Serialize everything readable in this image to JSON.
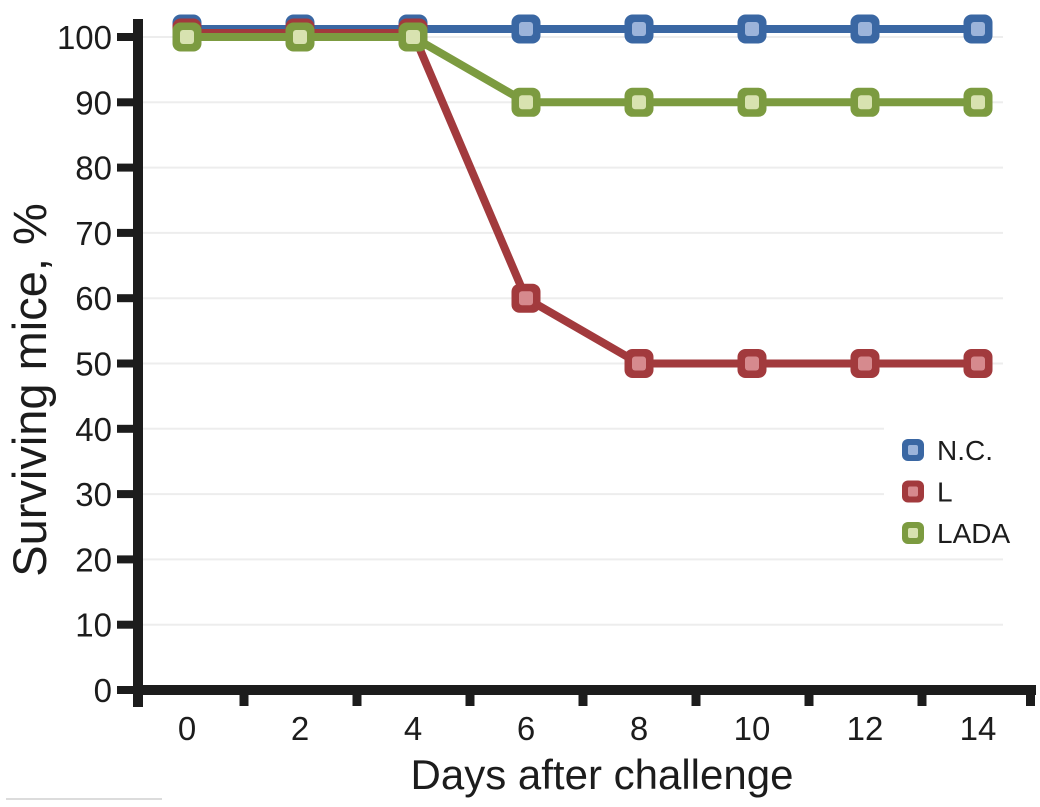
{
  "chart_data": {
    "type": "line",
    "title": "",
    "xlabel": "Days after challenge",
    "ylabel": "Surviving mice, %",
    "x": [
      0,
      2,
      4,
      6,
      8,
      10,
      12,
      14
    ],
    "series": [
      {
        "name": "N.C.",
        "values": [
          100,
          100,
          100,
          100,
          100,
          100,
          100,
          100
        ],
        "color": "#3A67A3",
        "marker_inner_color": "#9CB4DA"
      },
      {
        "name": "L",
        "values": [
          100,
          100,
          100,
          60,
          50,
          50,
          50,
          50
        ],
        "color": "#A23A3D",
        "marker_inner_color": "#D68A8E"
      },
      {
        "name": "LADA",
        "values": [
          100,
          100,
          100,
          90,
          90,
          90,
          90,
          90
        ],
        "color": "#7C9B40",
        "marker_inner_color": "#D8E2B0"
      }
    ],
    "xlim": [
      0,
      14
    ],
    "ylim": [
      0,
      100
    ],
    "yticks": [
      0,
      10,
      20,
      30,
      40,
      50,
      60,
      70,
      80,
      90,
      100
    ],
    "xticks_labeled": [
      0,
      2,
      4,
      6,
      8,
      10,
      12,
      14
    ],
    "grid": "horizontal",
    "gridline_color": "#EDEDED",
    "axis_color": "#1C1C1C",
    "marker_shape": "rounded-square",
    "legend_position": "right-middle",
    "legend_entries": [
      "N.C.",
      "L",
      "LADA"
    ]
  }
}
